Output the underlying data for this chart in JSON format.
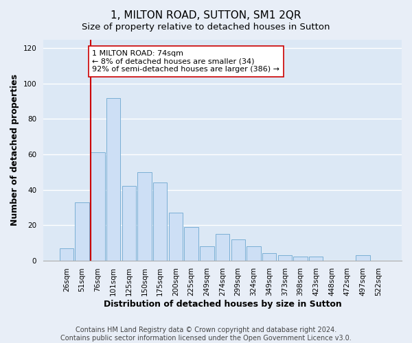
{
  "title": "1, MILTON ROAD, SUTTON, SM1 2QR",
  "subtitle": "Size of property relative to detached houses in Sutton",
  "xlabel": "Distribution of detached houses by size in Sutton",
  "ylabel": "Number of detached properties",
  "bar_labels": [
    "26sqm",
    "51sqm",
    "76sqm",
    "101sqm",
    "125sqm",
    "150sqm",
    "175sqm",
    "200sqm",
    "225sqm",
    "249sqm",
    "274sqm",
    "299sqm",
    "324sqm",
    "349sqm",
    "373sqm",
    "398sqm",
    "423sqm",
    "448sqm",
    "472sqm",
    "497sqm",
    "522sqm"
  ],
  "bar_values": [
    7,
    33,
    61,
    92,
    42,
    50,
    44,
    27,
    19,
    8,
    15,
    12,
    8,
    4,
    3,
    2,
    2,
    0,
    0,
    3,
    0
  ],
  "bar_color": "#cddff5",
  "bar_edge_color": "#7aafd4",
  "vline_color": "#cc0000",
  "annotation_text": "1 MILTON ROAD: 74sqm\n← 8% of detached houses are smaller (34)\n92% of semi-detached houses are larger (386) →",
  "annotation_box_color": "#ffffff",
  "annotation_box_edge_color": "#cc0000",
  "ylim": [
    0,
    125
  ],
  "yticks": [
    0,
    20,
    40,
    60,
    80,
    100,
    120
  ],
  "footer_line1": "Contains HM Land Registry data © Crown copyright and database right 2024.",
  "footer_line2": "Contains public sector information licensed under the Open Government Licence v3.0.",
  "background_color": "#e8eef7",
  "plot_background_color": "#dce8f5",
  "grid_color": "#ffffff",
  "title_fontsize": 11,
  "subtitle_fontsize": 9.5,
  "axis_label_fontsize": 9,
  "tick_fontsize": 7.5,
  "footer_fontsize": 7
}
